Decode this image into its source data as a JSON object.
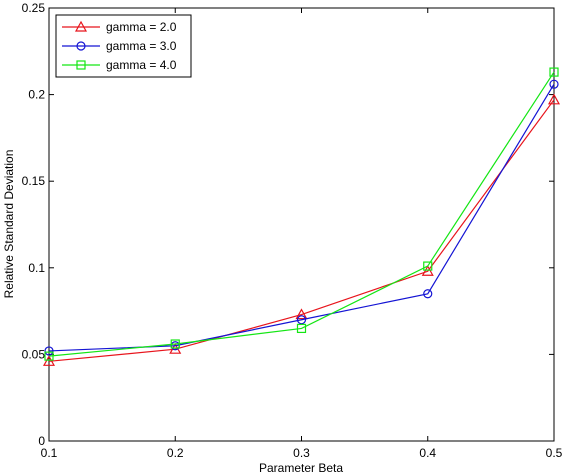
{
  "chart_data": {
    "type": "line",
    "xlabel": "Parameter Beta",
    "ylabel": "Relative Standard Deviation",
    "xlim": [
      0.1,
      0.5
    ],
    "ylim": [
      0,
      0.25
    ],
    "x": [
      0.1,
      0.2,
      0.3,
      0.4,
      0.5
    ],
    "x_ticks": [
      "0.1",
      "0.2",
      "0.3",
      "0.4",
      "0.5"
    ],
    "y_ticks": [
      "0",
      "0.05",
      "0.1",
      "0.15",
      "0.2",
      "0.25"
    ],
    "grid": false,
    "legend_position": "top-left",
    "series": [
      {
        "name": "gamma = 2.0",
        "color": "#e8141c",
        "marker": "triangle",
        "values": [
          0.046,
          0.053,
          0.073,
          0.098,
          0.197
        ]
      },
      {
        "name": "gamma = 3.0",
        "color": "#1414d4",
        "marker": "circle",
        "values": [
          0.052,
          0.055,
          0.07,
          0.085,
          0.206
        ]
      },
      {
        "name": "gamma = 4.0",
        "color": "#14e614",
        "marker": "square",
        "values": [
          0.049,
          0.056,
          0.065,
          0.101,
          0.213
        ]
      }
    ]
  }
}
